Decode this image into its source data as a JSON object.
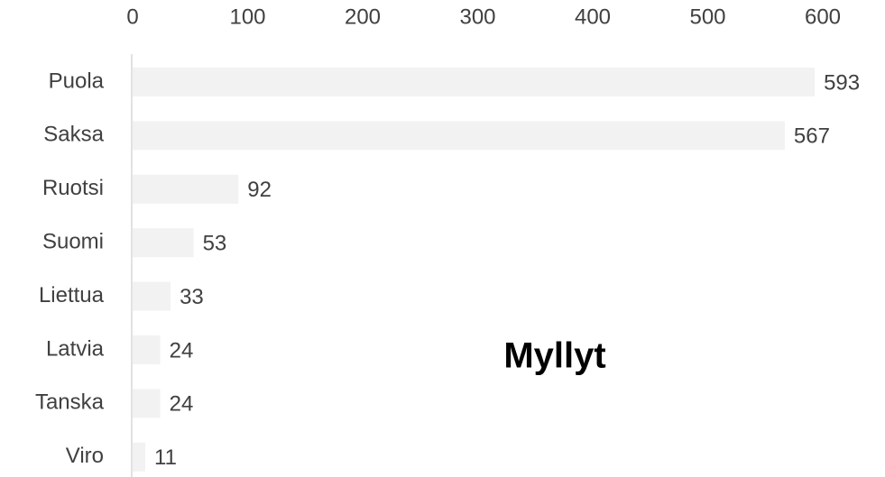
{
  "chart_data": {
    "type": "bar",
    "orientation": "horizontal",
    "title": "Myllyt",
    "categories": [
      "Puola",
      "Saksa",
      "Ruotsi",
      "Suomi",
      "Liettua",
      "Latvia",
      "Tanska",
      "Viro"
    ],
    "values": [
      593,
      567,
      92,
      53,
      33,
      24,
      24,
      11
    ],
    "color": "#f2f2f2",
    "xlim": [
      0,
      600
    ],
    "xticks": [
      0,
      100,
      200,
      300,
      400,
      500,
      600
    ],
    "grid": false
  }
}
